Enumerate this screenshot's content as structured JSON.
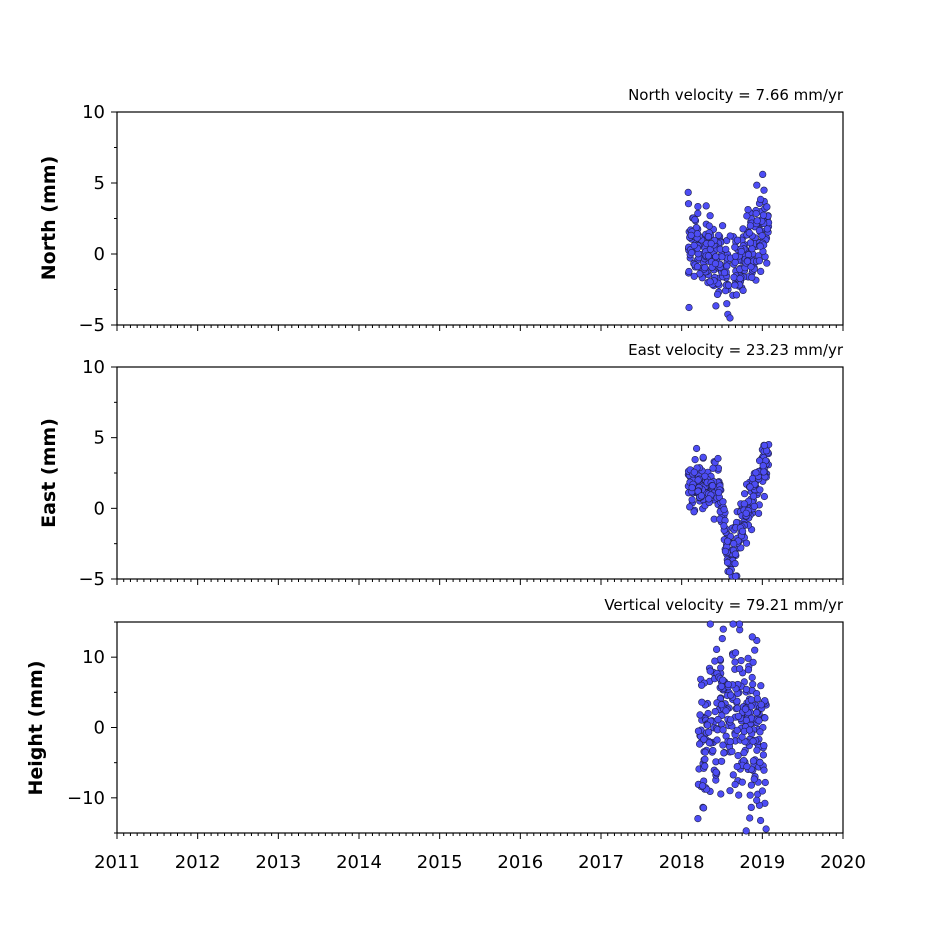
{
  "chart_data": [
    {
      "type": "scatter",
      "title": "North velocity = 7.66 mm/yr",
      "ylabel": "North (mm)",
      "xlim": [
        2011,
        2020
      ],
      "ylim": [
        -5,
        10
      ],
      "yticks": [
        -5,
        0,
        5,
        10
      ],
      "ytick_labels": [
        "−5",
        "0",
        "5",
        "10"
      ],
      "trend": "v",
      "x_range": [
        2018.08,
        2019.08
      ],
      "y_start": 0.8,
      "y_mid": -1.3,
      "y_end": 2.5,
      "scatter": 1.3
    },
    {
      "type": "scatter",
      "title": "East velocity = 23.23 mm/yr",
      "ylabel": "East (mm)",
      "xlim": [
        2011,
        2020
      ],
      "ylim": [
        -5,
        10
      ],
      "yticks": [
        -5,
        0,
        5,
        10
      ],
      "ytick_labels": [
        "−5",
        "0",
        "5",
        "10"
      ],
      "trend": "east",
      "x_range": [
        2018.08,
        2019.08
      ],
      "y_start": 1.5,
      "y_mid": -3.8,
      "y_end": 4.0,
      "scatter": 0.9
    },
    {
      "type": "scatter",
      "title": "Vertical velocity = 79.21 mm/yr",
      "ylabel": "Height (mm)",
      "xlim": [
        2011,
        2020
      ],
      "ylim": [
        -15,
        15
      ],
      "yticks": [
        -10,
        0,
        10
      ],
      "ytick_labels": [
        "−10",
        "0",
        "10"
      ],
      "trend": "height",
      "x_range": [
        2018.2,
        2019.05
      ],
      "y_start": -3.0,
      "y_mid": 2.0,
      "y_end": 0.0,
      "scatter": 5.5
    }
  ],
  "xticks": [
    2011,
    2012,
    2013,
    2014,
    2015,
    2016,
    2017,
    2018,
    2019,
    2020
  ],
  "xtick_labels": [
    "2011",
    "2012",
    "2013",
    "2014",
    "2015",
    "2016",
    "2017",
    "2018",
    "2019",
    "2020"
  ],
  "marker_color": "#4d4df5"
}
